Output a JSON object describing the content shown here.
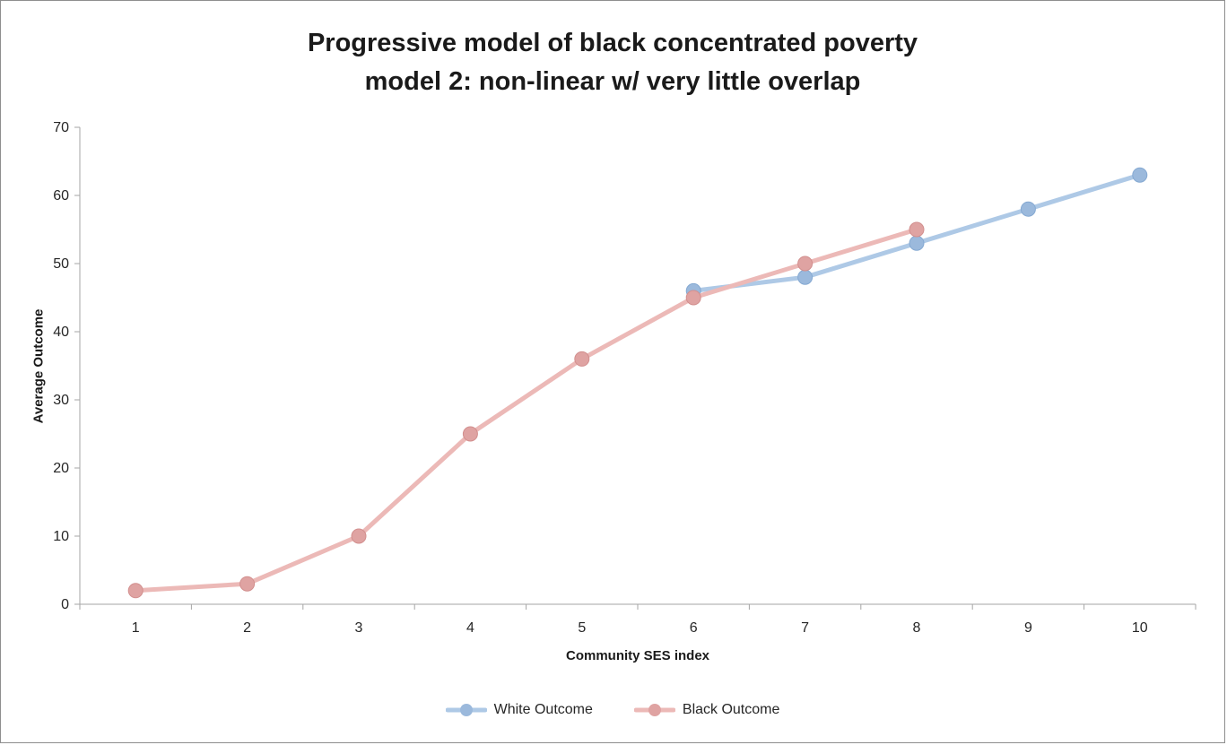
{
  "title": {
    "line1": "Progressive model of black concentrated poverty",
    "line2": "model 2: non-linear w/ very little overlap"
  },
  "chart_data": {
    "type": "line",
    "title": "Progressive model of black concentrated poverty model 2: non-linear w/ very little overlap",
    "xlabel": "Community SES index",
    "ylabel": "Average Outcome",
    "xticks": [
      "1",
      "2",
      "3",
      "4",
      "5",
      "6",
      "7",
      "8",
      "9",
      "10"
    ],
    "yticks": [
      0,
      10,
      20,
      30,
      40,
      50,
      60,
      70
    ],
    "ylim": [
      0,
      70
    ],
    "grid": false,
    "legend_position": "bottom",
    "series": [
      {
        "name": "White Outcome",
        "x": [
          6,
          7,
          8,
          9,
          10
        ],
        "values": [
          46,
          48,
          53,
          58,
          63
        ],
        "line_color": "#aec9e6",
        "marker_color": "#9bb9dc",
        "marker_edge_color": "#85a9d2"
      },
      {
        "name": "Black Outcome",
        "x": [
          1,
          2,
          3,
          4,
          5,
          6,
          7,
          8
        ],
        "values": [
          2,
          3,
          10,
          25,
          36,
          45,
          50,
          55
        ],
        "line_color": "#ecb9b7",
        "marker_color": "#dfa3a2",
        "marker_edge_color": "#d28f8e"
      }
    ]
  },
  "colors": {
    "axis": "#a6a6a6",
    "tick_text": "#262626"
  }
}
